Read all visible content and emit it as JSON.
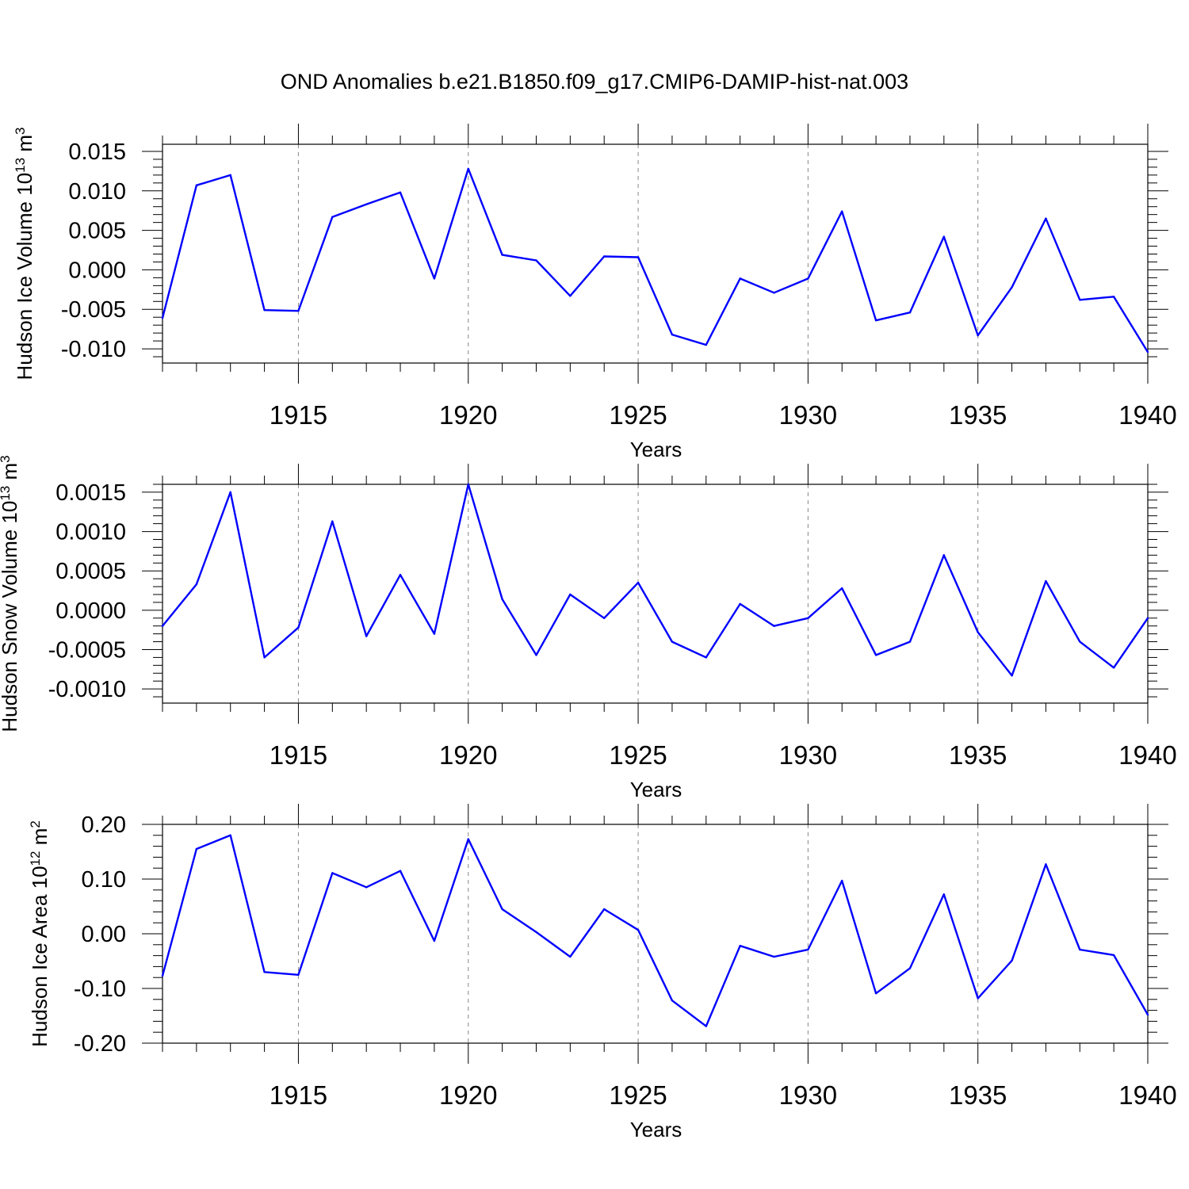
{
  "title": "OND Anomalies b.e21.B1850.f09_g17.CMIP6-DAMIP-hist-nat.003",
  "colors": {
    "line": "#0000ff",
    "axis": "#000000",
    "grid": "#888888"
  },
  "chart_data": [
    {
      "type": "line",
      "ylabel_main": "Hudson Ice Volume 10",
      "ylabel_exp": "13",
      "ylabel_unit": "m",
      "ylabel_unit_exp": "3",
      "xlabel": "Years",
      "xlim": [
        1911,
        1940
      ],
      "ylim": [
        -0.0118,
        0.0159
      ],
      "xticks": [
        1915,
        1920,
        1925,
        1930,
        1935,
        1940
      ],
      "yticks": [
        "0.015",
        "0.010",
        "0.005",
        "0.000",
        "-0.005",
        "-0.010"
      ],
      "ytick_values": [
        0.015,
        0.01,
        0.005,
        0.0,
        -0.005,
        -0.01
      ],
      "grid": "vertical dashed at major x ticks",
      "x": [
        1911,
        1912,
        1913,
        1914,
        1915,
        1916,
        1917,
        1918,
        1919,
        1920,
        1921,
        1922,
        1923,
        1924,
        1925,
        1926,
        1927,
        1928,
        1929,
        1930,
        1931,
        1932,
        1933,
        1934,
        1935,
        1936,
        1937,
        1938,
        1939,
        1940
      ],
      "values": [
        -0.0061,
        0.0107,
        0.012,
        -0.0051,
        -0.0052,
        0.0067,
        0.0083,
        0.0098,
        -0.0011,
        0.0128,
        0.0019,
        0.0012,
        -0.0033,
        0.0017,
        0.0016,
        -0.0082,
        -0.0095,
        -0.0011,
        -0.0029,
        -0.0011,
        0.0074,
        -0.0064,
        -0.0054,
        0.0042,
        -0.0083,
        -0.0022,
        0.0065,
        -0.0038,
        -0.0034,
        -0.0104
      ]
    },
    {
      "type": "line",
      "ylabel_main": "Hudson Snow Volume 10",
      "ylabel_exp": "13",
      "ylabel_unit": "m",
      "ylabel_unit_exp": "3",
      "xlabel": "Years",
      "xlim": [
        1911,
        1940
      ],
      "ylim": [
        -0.00118,
        0.0016
      ],
      "xticks": [
        1915,
        1920,
        1925,
        1930,
        1935,
        1940
      ],
      "yticks": [
        "0.0015",
        "0.0010",
        "0.0005",
        "0.0000",
        "-0.0005",
        "-0.0010"
      ],
      "ytick_values": [
        0.0015,
        0.001,
        0.0005,
        0.0,
        -0.0005,
        -0.001
      ],
      "grid": "vertical dashed at major x ticks",
      "x": [
        1911,
        1912,
        1913,
        1914,
        1915,
        1916,
        1917,
        1918,
        1919,
        1920,
        1921,
        1922,
        1923,
        1924,
        1925,
        1926,
        1927,
        1928,
        1929,
        1930,
        1931,
        1932,
        1933,
        1934,
        1935,
        1936,
        1937,
        1938,
        1939,
        1940
      ],
      "values": [
        -0.0002,
        0.00033,
        0.0015,
        -0.0006,
        -0.00022,
        0.00113,
        -0.00033,
        0.00045,
        -0.0003,
        0.0016,
        0.00014,
        -0.00057,
        0.0002,
        -0.0001,
        0.00035,
        -0.0004,
        -0.0006,
        8e-05,
        -0.0002,
        -0.0001,
        0.00028,
        -0.00057,
        -0.0004,
        0.0007,
        -0.00028,
        -0.00083,
        0.00037,
        -0.0004,
        -0.00073,
        -0.0001
      ]
    },
    {
      "type": "line",
      "ylabel_main": "Hudson Ice Area 10",
      "ylabel_exp": "12",
      "ylabel_unit": "m",
      "ylabel_unit_exp": "2",
      "xlabel": "Years",
      "xlim": [
        1911,
        1940
      ],
      "ylim": [
        -0.2,
        0.2
      ],
      "xticks": [
        1915,
        1920,
        1925,
        1930,
        1935,
        1940
      ],
      "yticks": [
        "0.20",
        "0.10",
        "0.00",
        "-0.10",
        "-0.20"
      ],
      "ytick_values": [
        0.2,
        0.1,
        0.0,
        -0.1,
        -0.2
      ],
      "grid": "vertical dashed at major x ticks",
      "x": [
        1911,
        1912,
        1913,
        1914,
        1915,
        1916,
        1917,
        1918,
        1919,
        1920,
        1921,
        1922,
        1923,
        1924,
        1925,
        1926,
        1927,
        1928,
        1929,
        1930,
        1931,
        1932,
        1933,
        1934,
        1935,
        1936,
        1937,
        1938,
        1939,
        1940
      ],
      "values": [
        -0.077,
        0.155,
        0.18,
        -0.07,
        -0.075,
        0.111,
        0.085,
        0.115,
        -0.013,
        0.173,
        0.045,
        0.003,
        -0.042,
        0.045,
        0.007,
        -0.122,
        -0.169,
        -0.022,
        -0.042,
        -0.029,
        0.097,
        -0.109,
        -0.063,
        0.072,
        -0.118,
        -0.049,
        0.127,
        -0.029,
        -0.039,
        -0.148
      ]
    }
  ]
}
